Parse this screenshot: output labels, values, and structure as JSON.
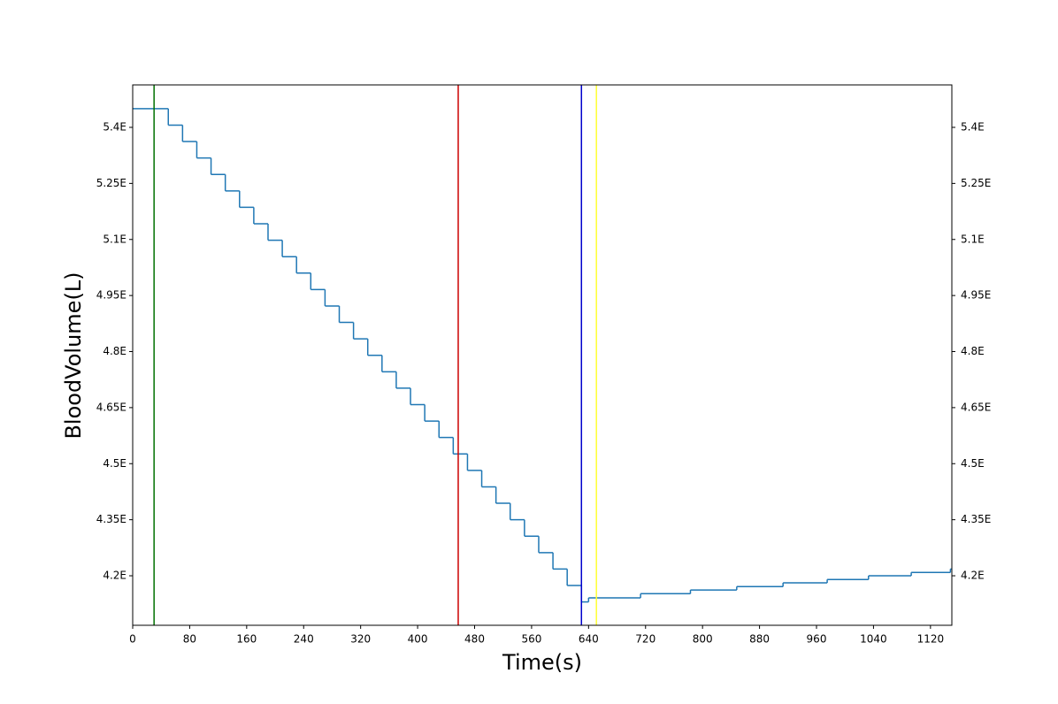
{
  "chart_data": {
    "type": "step",
    "xlabel": "Time(s)",
    "ylabel": "BloodVolume(L)",
    "xlim": [
      0,
      1150
    ],
    "ylim": [
      4.0675,
      5.5136
    ],
    "xticks": [
      0,
      80,
      160,
      240,
      320,
      400,
      480,
      560,
      640,
      720,
      800,
      880,
      960,
      1040,
      1120
    ],
    "yticks": [
      {
        "value": 4.2,
        "label": "4.2E"
      },
      {
        "value": 4.35,
        "label": "4.35E"
      },
      {
        "value": 4.5,
        "label": "4.5E"
      },
      {
        "value": 4.65,
        "label": "4.65E"
      },
      {
        "value": 4.8,
        "label": "4.8E"
      },
      {
        "value": 4.95,
        "label": "4.95E"
      },
      {
        "value": 5.1,
        "label": "5.1E"
      },
      {
        "value": 5.25,
        "label": "5.25E"
      },
      {
        "value": 5.4,
        "label": "5.4E"
      }
    ],
    "x": [
      0,
      30,
      50,
      70,
      90,
      110,
      130,
      150,
      170,
      190,
      210,
      230,
      250,
      270,
      290,
      310,
      330,
      350,
      370,
      390,
      410,
      430,
      450,
      470,
      490,
      510,
      530,
      550,
      570,
      590,
      610,
      630,
      640,
      713,
      783,
      848,
      913,
      975,
      1033,
      1093,
      1148,
      1150
    ],
    "values": [
      5.45,
      5.45,
      5.406,
      5.362,
      5.318,
      5.274,
      5.23,
      5.186,
      5.142,
      5.098,
      5.054,
      5.01,
      4.966,
      4.922,
      4.878,
      4.834,
      4.79,
      4.746,
      4.702,
      4.658,
      4.614,
      4.57,
      4.526,
      4.482,
      4.438,
      4.394,
      4.35,
      4.306,
      4.262,
      4.218,
      4.174,
      4.13,
      4.141,
      4.152,
      4.162,
      4.171,
      4.181,
      4.19,
      4.2,
      4.209,
      4.218,
      4.218
    ],
    "color": "#1f77b4",
    "vlines": [
      {
        "x": 30,
        "color": "#007000"
      },
      {
        "x": 457,
        "color": "#cc0000"
      },
      {
        "x": 630,
        "color": "#0000cc"
      },
      {
        "x": 651,
        "color": "#ffff33"
      }
    ],
    "right_axis_ticks": true
  }
}
